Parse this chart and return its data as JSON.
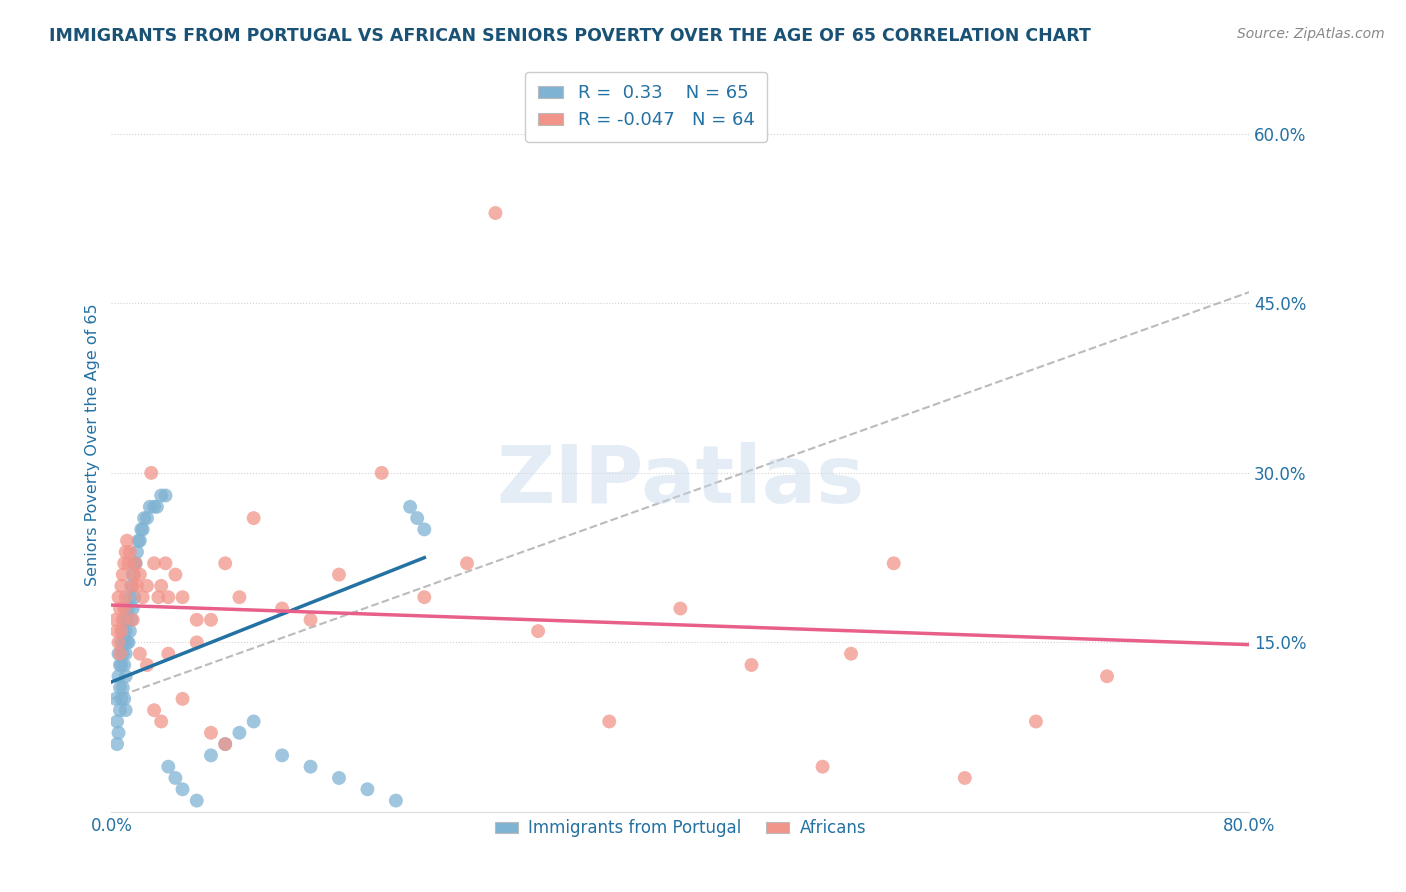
{
  "title": "IMMIGRANTS FROM PORTUGAL VS AFRICAN SENIORS POVERTY OVER THE AGE OF 65 CORRELATION CHART",
  "source": "Source: ZipAtlas.com",
  "ylabel": "Seniors Poverty Over the Age of 65",
  "legend_labels": [
    "Immigrants from Portugal",
    "Africans"
  ],
  "blue_R": 0.33,
  "blue_N": 65,
  "pink_R": -0.047,
  "pink_N": 64,
  "xlim": [
    0.0,
    0.8
  ],
  "ylim": [
    -0.02,
    0.68
  ],
  "plot_ylim": [
    0.0,
    0.65
  ],
  "right_yticks": [
    0.15,
    0.3,
    0.45,
    0.6
  ],
  "right_yticklabels": [
    "15.0%",
    "30.0%",
    "45.0%",
    "60.0%"
  ],
  "title_color": "#1a5276",
  "blue_color": "#7fb3d3",
  "pink_color": "#f1948a",
  "blue_line_color": "#2471a3",
  "pink_line_color": "#e8608a",
  "gray_dash_color": "#aaaaaa",
  "axis_label_color": "#2471a3",
  "blue_line_x0": 0.0,
  "blue_line_y0": 0.115,
  "blue_line_x1": 0.22,
  "blue_line_y1": 0.225,
  "gray_line_x0": 0.0,
  "gray_line_y0": 0.1,
  "gray_line_x1": 0.8,
  "gray_line_y1": 0.46,
  "pink_line_x0": 0.0,
  "pink_line_y0": 0.183,
  "pink_line_x1": 0.8,
  "pink_line_y1": 0.148,
  "blue_scatter_x": [
    0.003,
    0.004,
    0.004,
    0.005,
    0.005,
    0.005,
    0.006,
    0.006,
    0.006,
    0.007,
    0.007,
    0.007,
    0.008,
    0.008,
    0.008,
    0.009,
    0.009,
    0.009,
    0.009,
    0.01,
    0.01,
    0.01,
    0.01,
    0.01,
    0.011,
    0.011,
    0.012,
    0.012,
    0.013,
    0.013,
    0.014,
    0.014,
    0.015,
    0.015,
    0.016,
    0.016,
    0.017,
    0.018,
    0.019,
    0.02,
    0.021,
    0.022,
    0.023,
    0.025,
    0.027,
    0.03,
    0.032,
    0.035,
    0.038,
    0.04,
    0.045,
    0.05,
    0.06,
    0.07,
    0.08,
    0.09,
    0.1,
    0.12,
    0.14,
    0.16,
    0.18,
    0.2,
    0.21,
    0.215,
    0.22
  ],
  "blue_scatter_y": [
    0.1,
    0.08,
    0.06,
    0.14,
    0.12,
    0.07,
    0.13,
    0.11,
    0.09,
    0.15,
    0.13,
    0.1,
    0.16,
    0.14,
    0.11,
    0.17,
    0.15,
    0.13,
    0.1,
    0.18,
    0.16,
    0.14,
    0.12,
    0.09,
    0.17,
    0.15,
    0.18,
    0.15,
    0.19,
    0.16,
    0.2,
    0.17,
    0.21,
    0.18,
    0.22,
    0.19,
    0.22,
    0.23,
    0.24,
    0.24,
    0.25,
    0.25,
    0.26,
    0.26,
    0.27,
    0.27,
    0.27,
    0.28,
    0.28,
    0.04,
    0.03,
    0.02,
    0.01,
    0.05,
    0.06,
    0.07,
    0.08,
    0.05,
    0.04,
    0.03,
    0.02,
    0.01,
    0.27,
    0.26,
    0.25
  ],
  "pink_scatter_x": [
    0.003,
    0.004,
    0.005,
    0.005,
    0.006,
    0.006,
    0.007,
    0.007,
    0.008,
    0.008,
    0.009,
    0.009,
    0.01,
    0.01,
    0.011,
    0.012,
    0.013,
    0.015,
    0.016,
    0.017,
    0.018,
    0.02,
    0.022,
    0.025,
    0.028,
    0.03,
    0.033,
    0.035,
    0.038,
    0.04,
    0.045,
    0.05,
    0.06,
    0.07,
    0.08,
    0.09,
    0.1,
    0.12,
    0.14,
    0.16,
    0.19,
    0.22,
    0.25,
    0.3,
    0.35,
    0.4,
    0.45,
    0.5,
    0.52,
    0.55,
    0.6,
    0.65,
    0.7,
    0.27,
    0.015,
    0.02,
    0.025,
    0.03,
    0.035,
    0.04,
    0.05,
    0.06,
    0.07,
    0.08
  ],
  "pink_scatter_y": [
    0.17,
    0.16,
    0.19,
    0.15,
    0.18,
    0.14,
    0.2,
    0.16,
    0.21,
    0.17,
    0.22,
    0.18,
    0.23,
    0.19,
    0.24,
    0.22,
    0.23,
    0.2,
    0.21,
    0.22,
    0.2,
    0.21,
    0.19,
    0.2,
    0.3,
    0.22,
    0.19,
    0.2,
    0.22,
    0.19,
    0.21,
    0.19,
    0.17,
    0.17,
    0.22,
    0.19,
    0.26,
    0.18,
    0.17,
    0.21,
    0.3,
    0.19,
    0.22,
    0.16,
    0.08,
    0.18,
    0.13,
    0.04,
    0.14,
    0.22,
    0.03,
    0.08,
    0.12,
    0.53,
    0.17,
    0.14,
    0.13,
    0.09,
    0.08,
    0.14,
    0.1,
    0.15,
    0.07,
    0.06
  ]
}
